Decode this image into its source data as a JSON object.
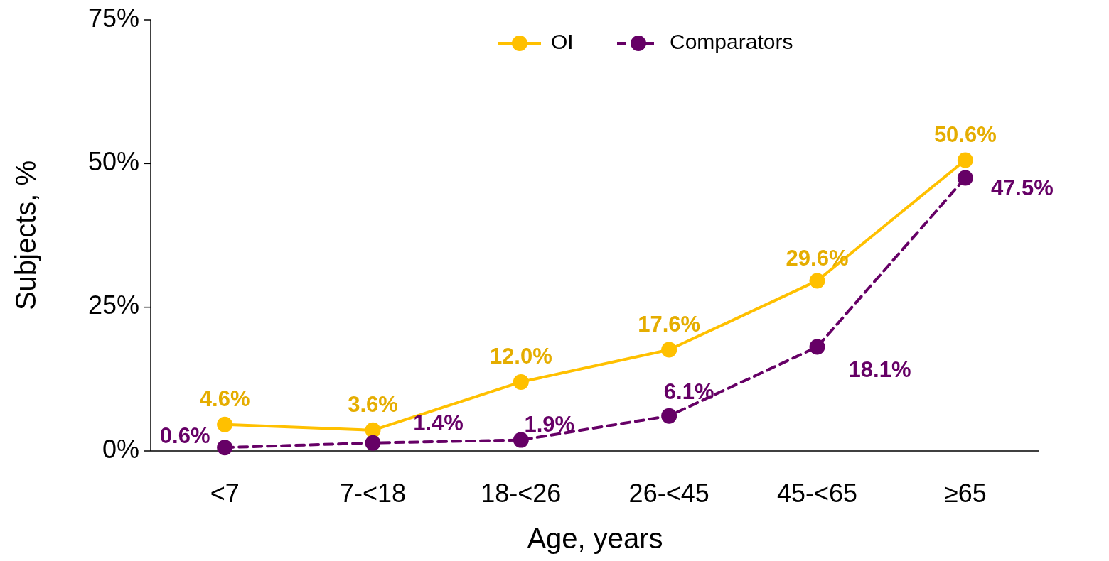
{
  "chart_data": {
    "type": "line",
    "xlabel": "Age, years",
    "ylabel": "Subjects, %",
    "categories": [
      "<7",
      "7-<18",
      "18-<26",
      "26-<45",
      "45-<65",
      "≥65"
    ],
    "ylim": [
      0,
      75
    ],
    "yticks": [
      {
        "value": 0,
        "label": "0%"
      },
      {
        "value": 25,
        "label": "25%"
      },
      {
        "value": 50,
        "label": "50%"
      },
      {
        "value": 75,
        "label": "75%"
      }
    ],
    "series": [
      {
        "name": "OI",
        "color": "#ffc000",
        "line_style": "solid",
        "values": [
          4.6,
          3.6,
          12.0,
          17.6,
          29.6,
          50.6
        ],
        "value_labels": [
          "4.6%",
          "3.6%",
          "12.0%",
          "17.6%",
          "29.6%",
          "50.6%"
        ]
      },
      {
        "name": "Comparators",
        "color": "#660066",
        "line_style": "dashed",
        "values": [
          0.6,
          1.4,
          1.9,
          6.1,
          18.1,
          47.5
        ],
        "value_labels": [
          "0.6%",
          "1.4%",
          "1.9%",
          "6.1%",
          "18.1%",
          "47.5%"
        ]
      }
    ],
    "marker": "circle",
    "legend": "top",
    "grid": false
  }
}
